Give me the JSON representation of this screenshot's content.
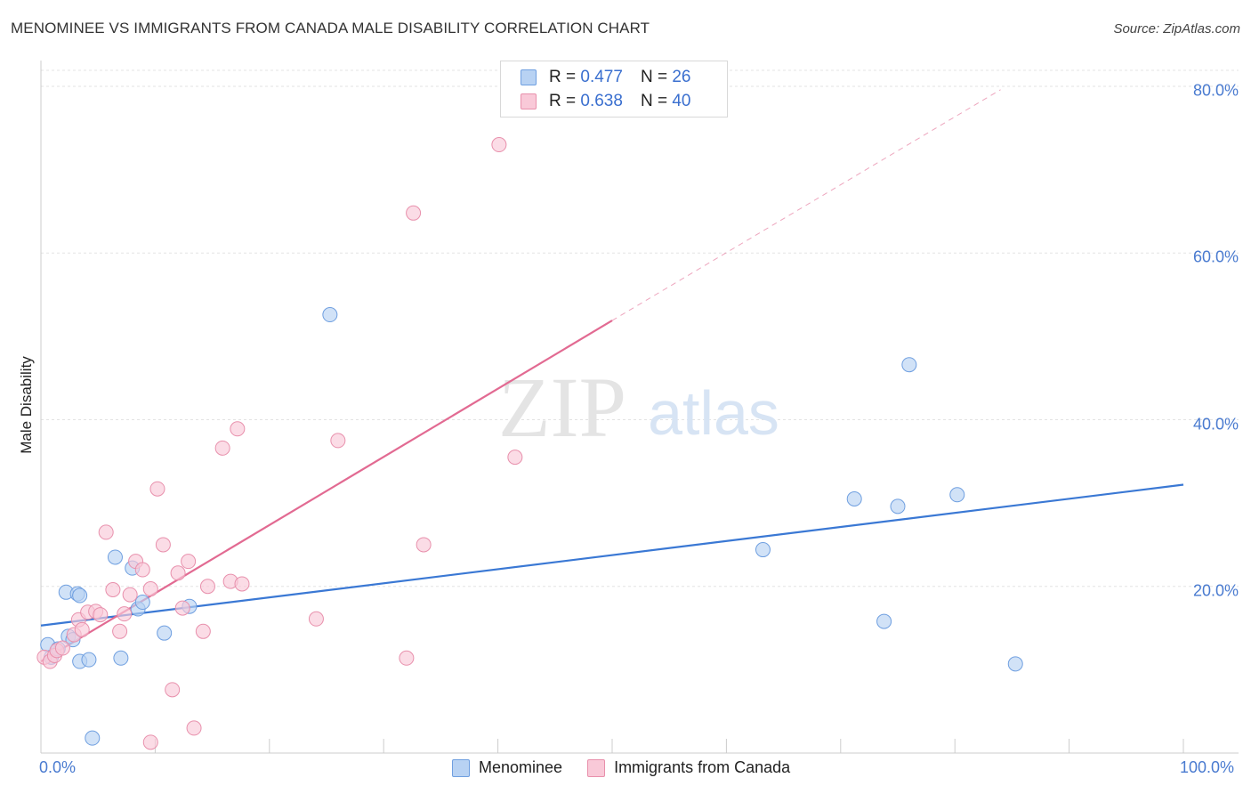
{
  "title": "MENOMINEE VS IMMIGRANTS FROM CANADA MALE DISABILITY CORRELATION CHART",
  "source": "Source: ZipAtlas.com",
  "watermark": {
    "zip": "ZIP",
    "atlas": "atlas"
  },
  "legend": {
    "r_label": "R =",
    "n_label": "N =",
    "rows": [
      {
        "name": "Menominee",
        "r": "0.477",
        "n": "26",
        "fill": "#b8d2f3",
        "stroke": "#6f9fe0"
      },
      {
        "name": "Immigrants from Canada",
        "r": "0.638",
        "n": "40",
        "fill": "#f9c9d8",
        "stroke": "#e890ac"
      }
    ]
  },
  "chart_data": {
    "type": "scatter",
    "title": "MENOMINEE VS IMMIGRANTS FROM CANADA MALE DISABILITY CORRELATION CHART",
    "xlabel": "",
    "ylabel": "Male Disability",
    "xlim": [
      0,
      100
    ],
    "ylim": [
      0,
      80
    ],
    "x_tick_labels": [
      "0.0%",
      "100.0%"
    ],
    "y_ticks": [
      20,
      40,
      60,
      80
    ],
    "y_tick_labels": [
      "20.0%",
      "40.0%",
      "60.0%",
      "80.0%"
    ],
    "grid": true,
    "series": [
      {
        "name": "Menominee",
        "color": "#3a78d4",
        "fill": "#b8d2f3",
        "points": [
          [
            0.6,
            13.0
          ],
          [
            0.9,
            11.5
          ],
          [
            1.5,
            12.5
          ],
          [
            2.2,
            19.3
          ],
          [
            3.2,
            19.1
          ],
          [
            3.4,
            18.9
          ],
          [
            2.4,
            14.0
          ],
          [
            2.8,
            13.6
          ],
          [
            3.4,
            11.0
          ],
          [
            4.2,
            11.2
          ],
          [
            4.5,
            1.8
          ],
          [
            6.5,
            23.5
          ],
          [
            7.0,
            11.4
          ],
          [
            8.0,
            22.2
          ],
          [
            8.5,
            17.3
          ],
          [
            8.9,
            18.1
          ],
          [
            10.8,
            14.4
          ],
          [
            13.0,
            17.6
          ],
          [
            25.3,
            52.6
          ],
          [
            63.2,
            24.4
          ],
          [
            71.2,
            30.5
          ],
          [
            73.8,
            15.8
          ],
          [
            75.0,
            29.6
          ],
          [
            76.0,
            46.6
          ],
          [
            80.2,
            31.0
          ],
          [
            85.3,
            10.7
          ]
        ],
        "trend": {
          "x0": 0,
          "y0": 15.3,
          "x1": 100,
          "y1": 32.2,
          "dashed_to": null
        }
      },
      {
        "name": "Immigrants from Canada",
        "color": "#e26a92",
        "fill": "#f9c9d8",
        "points": [
          [
            0.3,
            11.5
          ],
          [
            0.8,
            11.0
          ],
          [
            1.2,
            11.7
          ],
          [
            1.4,
            12.3
          ],
          [
            1.9,
            12.6
          ],
          [
            2.9,
            14.2
          ],
          [
            3.3,
            16.0
          ],
          [
            3.6,
            14.8
          ],
          [
            4.1,
            16.9
          ],
          [
            4.8,
            17.0
          ],
          [
            5.2,
            16.6
          ],
          [
            5.7,
            26.5
          ],
          [
            6.3,
            19.6
          ],
          [
            6.9,
            14.6
          ],
          [
            7.3,
            16.7
          ],
          [
            7.8,
            19.0
          ],
          [
            8.3,
            23.0
          ],
          [
            8.9,
            22.0
          ],
          [
            9.6,
            19.7
          ],
          [
            10.2,
            31.7
          ],
          [
            10.7,
            25.0
          ],
          [
            11.5,
            7.6
          ],
          [
            12.0,
            21.6
          ],
          [
            12.4,
            17.4
          ],
          [
            12.9,
            23.0
          ],
          [
            13.4,
            3.0
          ],
          [
            14.2,
            14.6
          ],
          [
            14.6,
            20.0
          ],
          [
            15.9,
            36.6
          ],
          [
            16.6,
            20.6
          ],
          [
            17.2,
            38.9
          ],
          [
            17.6,
            20.3
          ],
          [
            9.6,
            1.3
          ],
          [
            24.1,
            16.1
          ],
          [
            26.0,
            37.5
          ],
          [
            32.0,
            11.4
          ],
          [
            32.6,
            64.8
          ],
          [
            33.5,
            25.0
          ],
          [
            40.1,
            73.0
          ],
          [
            41.5,
            35.5
          ]
        ],
        "trend": {
          "x0": 0,
          "y0": 11.0,
          "x1": 50,
          "y1": 51.9,
          "dashed_to": {
            "x": 84,
            "y": 79.6
          }
        }
      }
    ]
  },
  "bottom_legend": [
    {
      "label": "Menominee",
      "fill": "#b8d2f3",
      "stroke": "#6f9fe0"
    },
    {
      "label": "Immigrants from Canada",
      "fill": "#f9c9d8",
      "stroke": "#e890ac"
    }
  ]
}
